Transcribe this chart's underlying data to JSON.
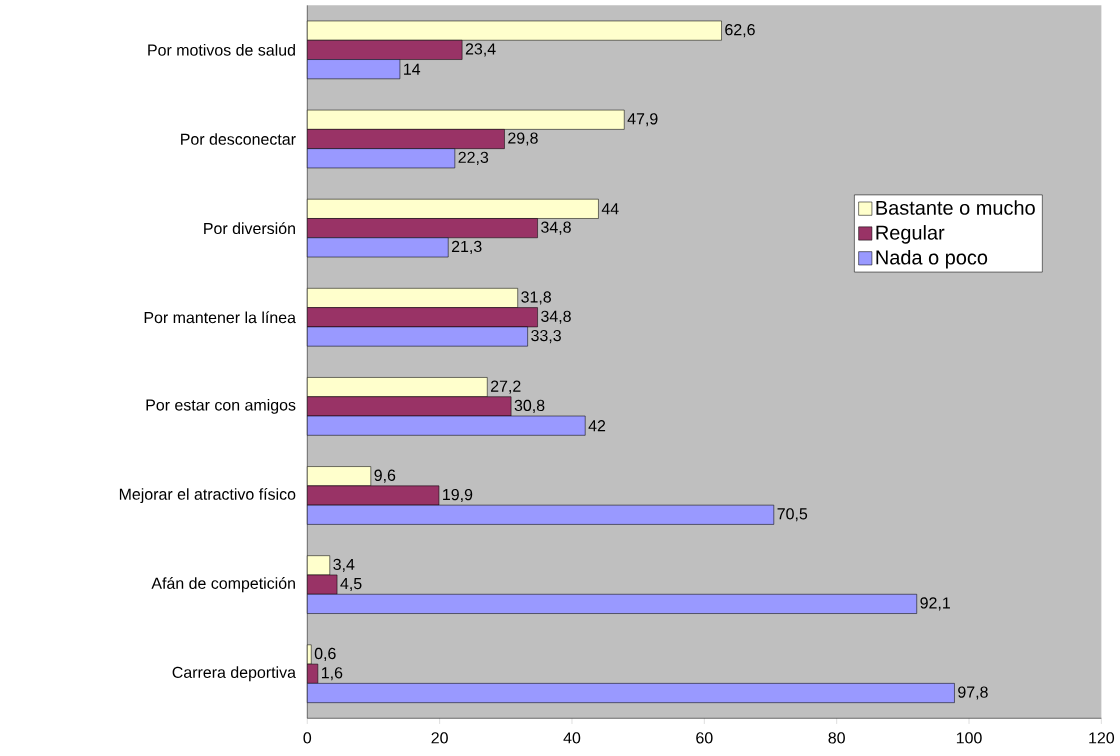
{
  "chart_data": {
    "type": "bar",
    "orientation": "horizontal",
    "categories": [
      "Por motivos de salud",
      "Por desconectar",
      "Por diversión",
      "Por mantener la línea",
      "Por estar con amigos",
      "Mejorar el atractivo físico",
      "Afán de competición",
      "Carrera deportiva"
    ],
    "series": [
      {
        "name": "Bastante o mucho",
        "color": "#ffffcc",
        "values": [
          62.6,
          47.9,
          44,
          31.8,
          27.2,
          9.6,
          3.4,
          0.6
        ],
        "value_labels": [
          "62,6",
          "47,9",
          "44",
          "31,8",
          "27,2",
          "9,6",
          "3,4",
          "0,6"
        ]
      },
      {
        "name": "Regular",
        "color": "#993366",
        "values": [
          23.4,
          29.8,
          34.8,
          34.8,
          30.8,
          19.9,
          4.5,
          1.6
        ],
        "value_labels": [
          "23,4",
          "29,8",
          "34,8",
          "34,8",
          "30,8",
          "19,9",
          "4,5",
          "1,6"
        ]
      },
      {
        "name": "Nada o poco",
        "color": "#9999ff",
        "values": [
          14,
          22.3,
          21.3,
          33.3,
          42,
          70.5,
          92.1,
          97.8
        ],
        "value_labels": [
          "14",
          "22,3",
          "21,3",
          "33,3",
          "42",
          "70,5",
          "92,1",
          "97,8"
        ]
      }
    ],
    "xlim": [
      0,
      120
    ],
    "xticks": [
      0,
      20,
      40,
      60,
      80,
      100,
      120
    ],
    "grid": false,
    "legend": "right"
  }
}
